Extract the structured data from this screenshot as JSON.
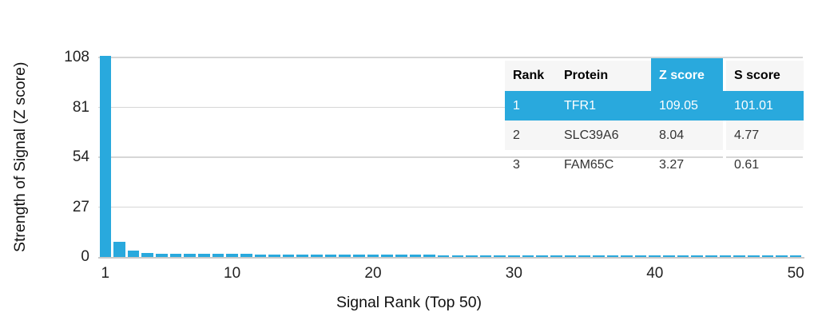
{
  "colors": {
    "accent_blue": "#29a9dd",
    "grid_line": "#d6d6d6",
    "axis_line": "#c9c9c9",
    "table_header_bg": "#f6f6f6",
    "table_alt_row_bg": "#f6f6f6",
    "highlight_text": "#ffffff"
  },
  "chart_data": {
    "type": "bar",
    "title": "",
    "xlabel": "Signal Rank (Top 50)",
    "ylabel": "Strength of Signal (Z score)",
    "ylim": [
      0,
      108
    ],
    "yticks": [
      0,
      27,
      54,
      81,
      108
    ],
    "xticks": [
      1,
      10,
      20,
      30,
      40,
      50
    ],
    "grid": "horizontal gridlines on",
    "legend": "none",
    "bar_color": "#29a9dd",
    "x": [
      1,
      2,
      3,
      4,
      5,
      6,
      7,
      8,
      9,
      10,
      11,
      12,
      13,
      14,
      15,
      16,
      17,
      18,
      19,
      20,
      21,
      22,
      23,
      24,
      25,
      26,
      27,
      28,
      29,
      30,
      31,
      32,
      33,
      34,
      35,
      36,
      37,
      38,
      39,
      40,
      41,
      42,
      43,
      44,
      45,
      46,
      47,
      48,
      49,
      50
    ],
    "values": [
      109.05,
      8.04,
      3.27,
      2.1,
      1.95,
      1.85,
      1.75,
      1.7,
      1.65,
      1.6,
      1.55,
      1.5,
      1.5,
      1.45,
      1.4,
      1.4,
      1.35,
      1.3,
      1.3,
      1.25,
      1.2,
      1.15,
      1.1,
      1.1,
      1.05,
      1.05,
      1.0,
      1.0,
      1.0,
      0.95,
      0.95,
      0.95,
      0.9,
      0.9,
      0.9,
      0.9,
      0.85,
      0.85,
      0.85,
      0.85,
      0.85,
      0.8,
      0.8,
      0.8,
      0.8,
      0.8,
      0.75,
      0.75,
      0.75,
      0.75
    ]
  },
  "table": {
    "columns": [
      "Rank",
      "Protein",
      "Z score",
      "S score"
    ],
    "highlighted_column": "Z score",
    "rows": [
      {
        "cells": [
          "1",
          "TFR1",
          "109.05",
          "101.01"
        ],
        "highlighted": true
      },
      {
        "cells": [
          "2",
          "SLC39A6",
          "8.04",
          "4.77"
        ],
        "highlighted": false
      },
      {
        "cells": [
          "3",
          "FAM65C",
          "3.27",
          "0.61"
        ],
        "highlighted": false
      }
    ]
  }
}
